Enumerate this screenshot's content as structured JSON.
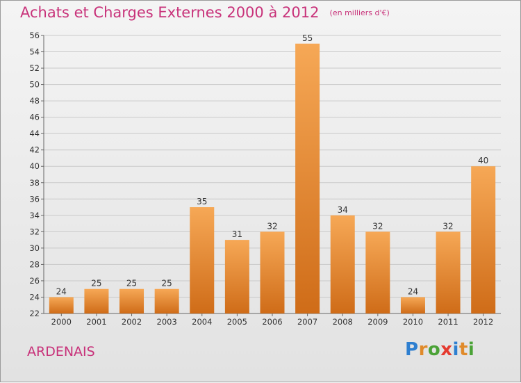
{
  "title": "Achats et Charges Externes 2000 à 2012",
  "unit": "(en milliers d'€)",
  "place": "ARDENAIS",
  "brand": {
    "letters": [
      "P",
      "r",
      "o",
      "x",
      "i",
      "t",
      "i"
    ],
    "colors": [
      "#2e7fd0",
      "#e08a2a",
      "#4aa236",
      "#e53a2f",
      "#2e7fd0",
      "#e08a2a",
      "#4aa236"
    ]
  },
  "colors": {
    "accent": "#c8327a",
    "bar": "#f0a048"
  },
  "chart_data": {
    "type": "bar",
    "categories": [
      "2000",
      "2001",
      "2002",
      "2003",
      "2004",
      "2005",
      "2006",
      "2007",
      "2008",
      "2009",
      "2010",
      "2011",
      "2012"
    ],
    "values": [
      24,
      25,
      25,
      25,
      35,
      31,
      32,
      55,
      34,
      32,
      24,
      32,
      40
    ],
    "ylim": [
      22,
      56
    ],
    "yticks": [
      22,
      24,
      26,
      28,
      30,
      32,
      34,
      36,
      38,
      40,
      42,
      44,
      46,
      48,
      50,
      52,
      54,
      56
    ],
    "grid": true,
    "data_labels": true
  }
}
